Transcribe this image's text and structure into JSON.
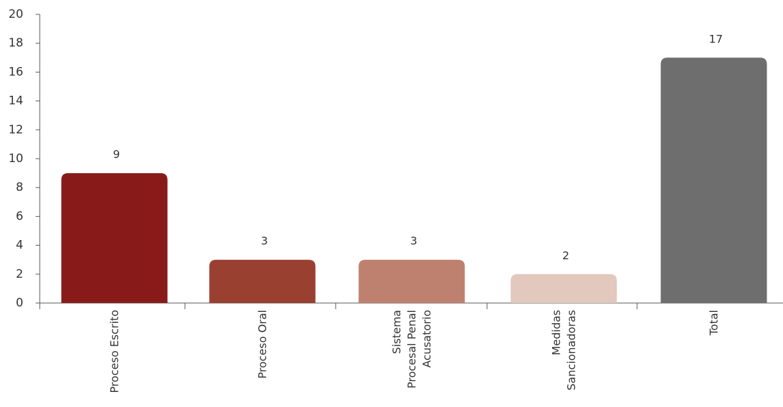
{
  "chart_data": {
    "type": "bar",
    "categories": [
      [
        "Proceso Escrito"
      ],
      [
        "Proceso Oral"
      ],
      [
        "Sistema",
        "Procesal Penal",
        "Acusatorio"
      ],
      [
        "Medidas",
        "Sancionadoras"
      ],
      [
        "Total"
      ]
    ],
    "values": [
      9,
      3,
      3,
      2,
      17
    ],
    "data_labels": [
      "9",
      "3",
      "3",
      "2",
      "17"
    ],
    "bar_colors": [
      "#881b1a",
      "#9a4031",
      "#bf816f",
      "#e2c8bd",
      "#6e6e6e"
    ],
    "ylim": [
      0,
      20
    ],
    "yticks": [
      0,
      2,
      4,
      6,
      8,
      10,
      12,
      14,
      16,
      18,
      20
    ],
    "ytick_labels": [
      "0",
      "2",
      "4",
      "6",
      "8",
      "10",
      "12",
      "14",
      "16",
      "18",
      "20"
    ],
    "grid": false,
    "legend": "none",
    "title": "",
    "xlabel": "",
    "ylabel": ""
  }
}
